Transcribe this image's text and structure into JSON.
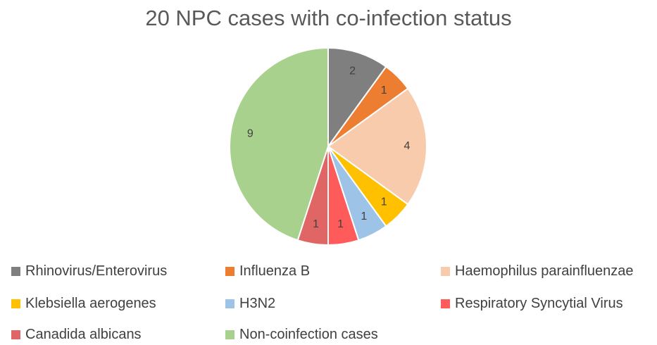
{
  "chart_data": {
    "type": "pie",
    "title": "20 NPC cases with co-infection status",
    "categories": [
      "Rhinovirus/Enterovirus",
      "Influenza B",
      "Haemophilus parainfluenzae",
      "Klebsiella aerogenes",
      "H3N2",
      "Respiratory Syncytial Virus",
      "Canadida albicans",
      "Non-coinfection cases"
    ],
    "values": [
      2,
      1,
      4,
      1,
      1,
      1,
      1,
      9
    ],
    "colors": [
      "#7f7f7f",
      "#ed7d31",
      "#f8cbad",
      "#ffc000",
      "#9dc3e6",
      "#ff5b5b",
      "#e06666",
      "#a9d18e"
    ],
    "data_labels": [
      "2",
      "1",
      "4",
      "1",
      "1",
      "1",
      "1",
      "9"
    ],
    "legend_position": "bottom"
  }
}
